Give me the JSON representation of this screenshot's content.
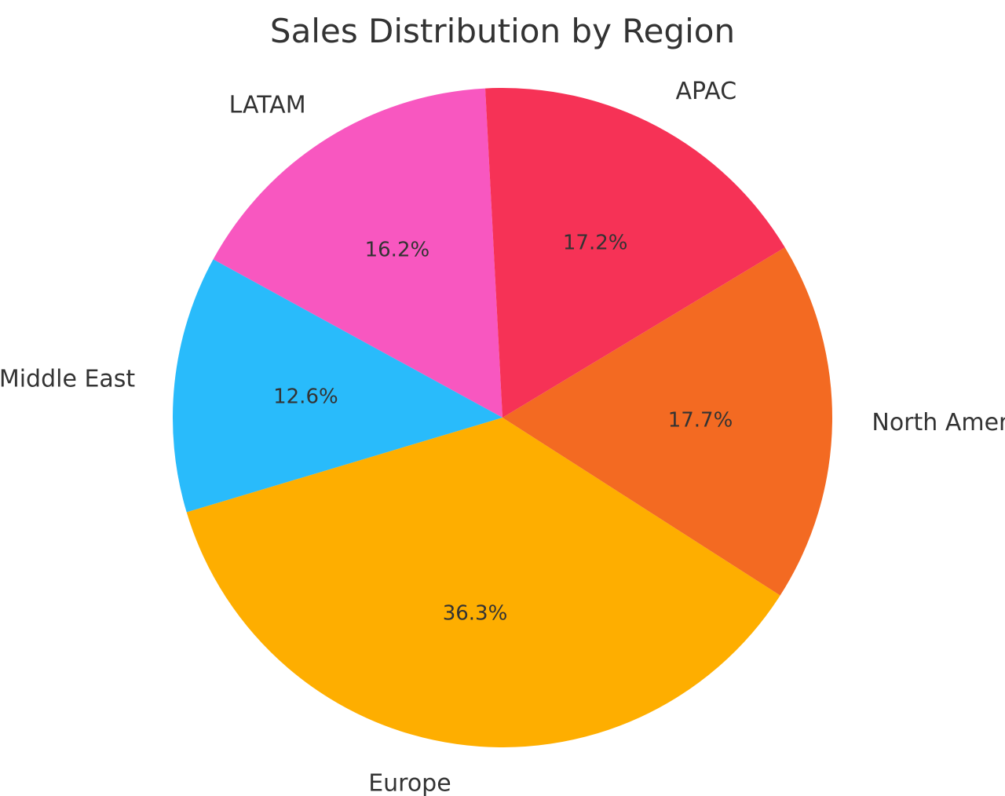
{
  "chart_data": {
    "type": "pie",
    "title": "Sales Distribution by Region",
    "start_angle_deg": 93,
    "direction": "counterclockwise",
    "legend": "none",
    "slices": [
      {
        "label": "LATAM",
        "value": 16.2,
        "pct_label": "16.2%",
        "color": "#F857C0"
      },
      {
        "label": "Middle East",
        "value": 12.6,
        "pct_label": "12.6%",
        "color": "#29BBFB"
      },
      {
        "label": "Europe",
        "value": 36.3,
        "pct_label": "36.3%",
        "color": "#FEAE00"
      },
      {
        "label": "North America",
        "value": 17.7,
        "pct_label": "17.7%",
        "color": "#F36A22"
      },
      {
        "label": "APAC",
        "value": 17.2,
        "pct_label": "17.2%",
        "color": "#F63256"
      }
    ]
  }
}
